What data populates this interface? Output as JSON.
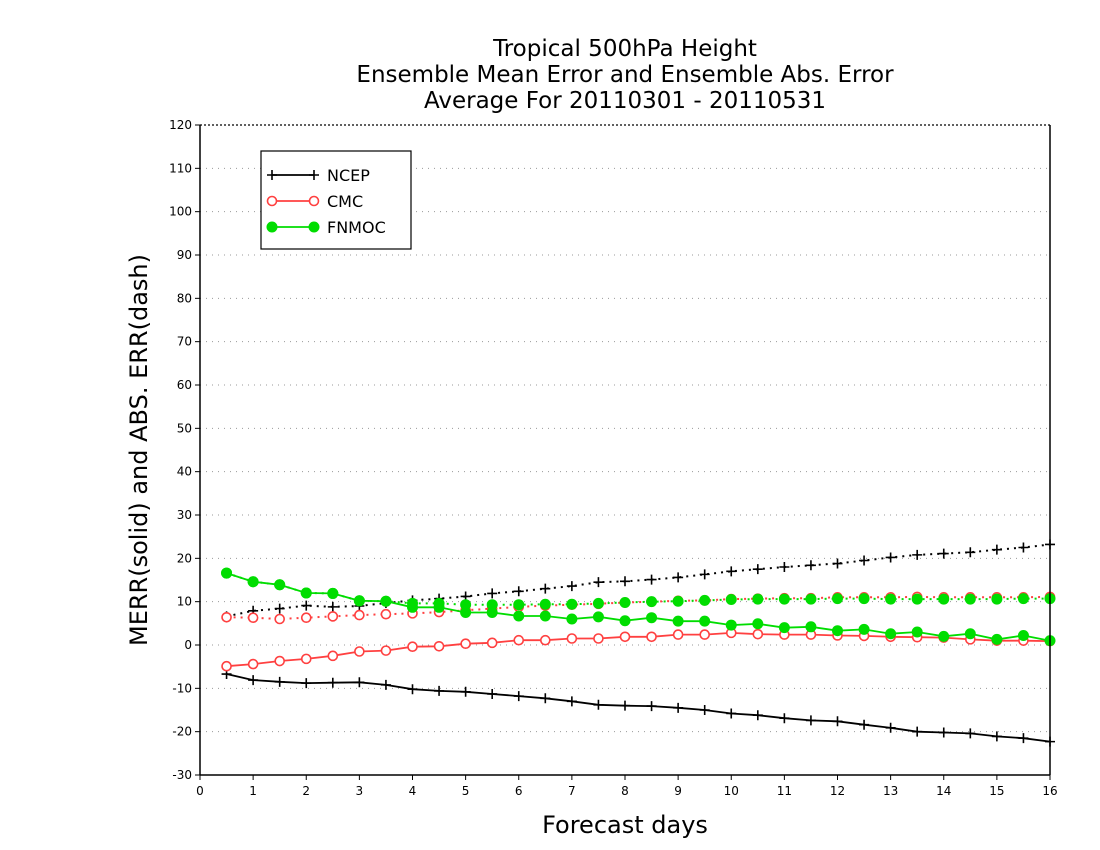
{
  "chart_data": {
    "type": "line",
    "title": [
      "Tropical 500hPa Height",
      "Ensemble Mean Error and Ensemble Abs. Error",
      "Average For 20110301 - 20110531"
    ],
    "xlabel": "Forecast days",
    "ylabel": "MERR(solid) and ABS. ERR(dash)",
    "xlim": [
      0,
      16
    ],
    "ylim": [
      -30,
      120
    ],
    "xticks": [
      "0",
      "1",
      "2",
      "3",
      "4",
      "5",
      "6",
      "7",
      "8",
      "9",
      "10",
      "11",
      "12",
      "13",
      "14",
      "15",
      "16"
    ],
    "yticks": [
      "-30",
      "-20",
      "-10",
      "0",
      "10",
      "20",
      "30",
      "40",
      "50",
      "60",
      "70",
      "80",
      "90",
      "100",
      "110",
      "120"
    ],
    "grid": "horizontal dotted",
    "legend_position": "top-left",
    "x": [
      0.5,
      1,
      1.5,
      2,
      2.5,
      3,
      3.5,
      4,
      4.5,
      5,
      5.5,
      6,
      6.5,
      7,
      7.5,
      8,
      8.5,
      9,
      9.5,
      10,
      10.5,
      11,
      11.5,
      12,
      12.5,
      13,
      13.5,
      14,
      14.5,
      15,
      15.5,
      16
    ],
    "series": [
      {
        "name": "NCEP",
        "color": "#000000",
        "marker": "plus",
        "style": "solid",
        "values": [
          -6.7,
          -8.1,
          -8.5,
          -8.8,
          -8.7,
          -8.6,
          -9.2,
          -10.2,
          -10.6,
          -10.8,
          -11.3,
          -11.8,
          -12.3,
          -13.0,
          -13.8,
          -14.0,
          -14.1,
          -14.5,
          -15.0,
          -15.8,
          -16.2,
          -16.9,
          -17.4,
          -17.6,
          -18.4,
          -19.1,
          -20.0,
          -20.2,
          -20.4,
          -21.1,
          -21.5,
          -22.3
        ]
      },
      {
        "name": "NCEP",
        "color": "#000000",
        "marker": "plus",
        "style": "dotted",
        "values": [
          6.6,
          7.9,
          8.4,
          9.1,
          8.8,
          9.0,
          9.7,
          10.3,
          10.7,
          11.2,
          11.9,
          12.4,
          13.0,
          13.6,
          14.5,
          14.7,
          15.1,
          15.6,
          16.3,
          17.0,
          17.5,
          18.0,
          18.4,
          18.8,
          19.5,
          20.2,
          20.8,
          21.1,
          21.4,
          22.0,
          22.5,
          23.2
        ]
      },
      {
        "name": "CMC",
        "color": "#ff4040",
        "marker": "open-circle",
        "style": "solid",
        "values": [
          -4.9,
          -4.4,
          -3.7,
          -3.2,
          -2.5,
          -1.5,
          -1.3,
          -0.4,
          -0.3,
          0.3,
          0.5,
          1.1,
          1.1,
          1.5,
          1.5,
          1.9,
          1.9,
          2.4,
          2.4,
          2.8,
          2.5,
          2.4,
          2.4,
          2.2,
          2.1,
          1.9,
          1.8,
          1.7,
          1.3,
          1.0,
          1.0,
          0.9
        ]
      },
      {
        "name": "CMC",
        "color": "#ff4040",
        "marker": "open-circle",
        "style": "dotted",
        "values": [
          6.4,
          6.3,
          6.0,
          6.3,
          6.6,
          6.9,
          7.1,
          7.3,
          7.6,
          8.0,
          8.4,
          8.8,
          9.1,
          9.3,
          9.5,
          9.8,
          10.0,
          10.2,
          10.3,
          10.6,
          10.7,
          10.8,
          10.8,
          11.0,
          11.0,
          11.0,
          11.1,
          11.0,
          11.0,
          11.0,
          11.0,
          11.1
        ]
      },
      {
        "name": "FNMOC",
        "color": "#00dd00",
        "marker": "filled-circle",
        "style": "solid",
        "values": [
          16.6,
          14.6,
          13.9,
          12.0,
          11.9,
          10.2,
          10.1,
          8.7,
          8.7,
          7.5,
          7.5,
          6.7,
          6.7,
          6.0,
          6.5,
          5.6,
          6.3,
          5.5,
          5.5,
          4.6,
          4.9,
          4.0,
          4.2,
          3.3,
          3.6,
          2.6,
          3.0,
          2.0,
          2.6,
          1.3,
          2.2,
          1.0
        ]
      },
      {
        "name": "FNMOC",
        "color": "#00dd00",
        "marker": "filled-circle",
        "style": "dotted",
        "values": [
          16.6,
          14.6,
          13.9,
          12.0,
          11.9,
          10.2,
          10.1,
          9.6,
          9.6,
          9.3,
          9.3,
          9.3,
          9.4,
          9.4,
          9.6,
          9.8,
          10.0,
          10.1,
          10.3,
          10.5,
          10.6,
          10.6,
          10.6,
          10.7,
          10.7,
          10.6,
          10.6,
          10.6,
          10.6,
          10.6,
          10.7,
          10.7
        ]
      }
    ],
    "legend": [
      {
        "name": "NCEP",
        "color": "#000000",
        "marker": "plus"
      },
      {
        "name": "CMC",
        "color": "#ff4040",
        "marker": "open-circle"
      },
      {
        "name": "FNMOC",
        "color": "#00dd00",
        "marker": "filled-circle"
      }
    ]
  }
}
